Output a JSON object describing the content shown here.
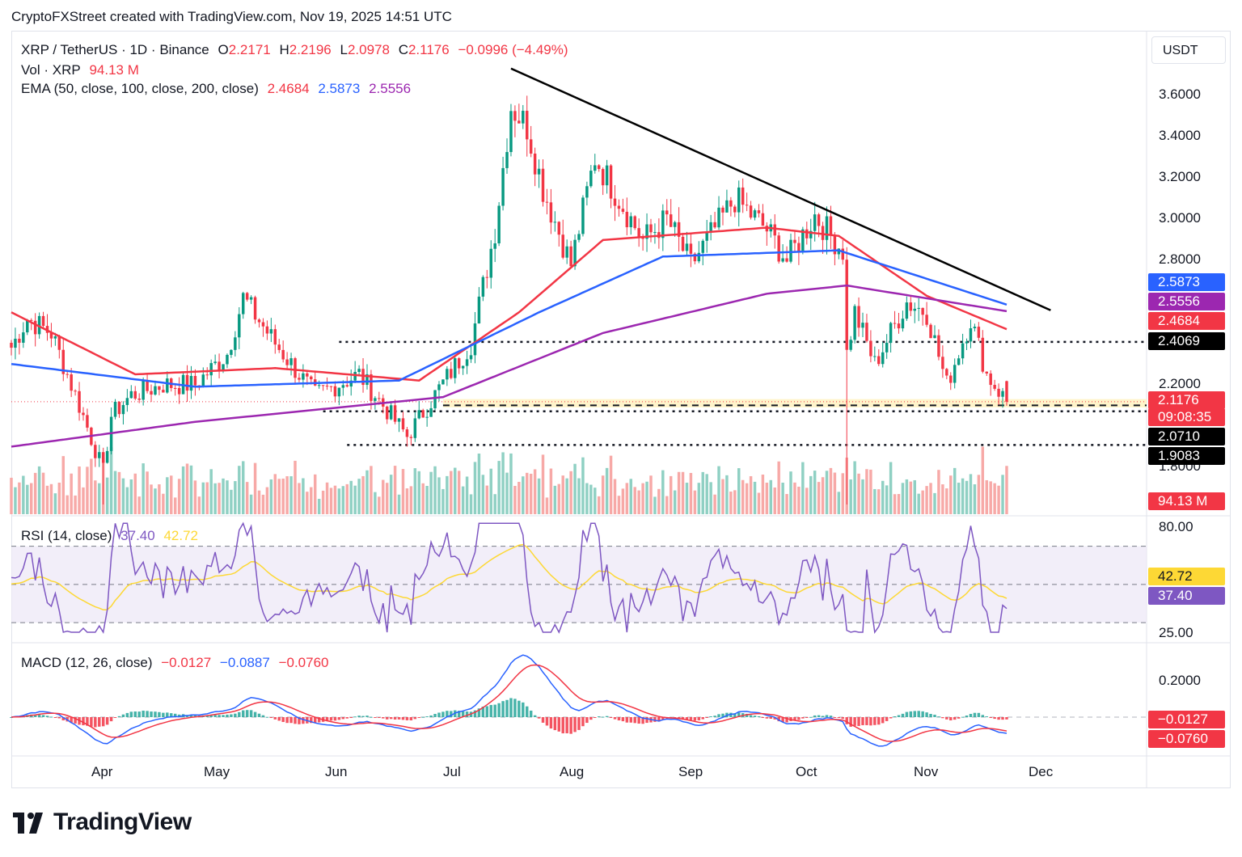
{
  "header": {
    "credit": "CryptoFXStreet created with TradingView.com, Nov 19, 2025 14:51 UTC"
  },
  "logo": {
    "text": "TradingView"
  },
  "currency_button": "USDT",
  "legend": {
    "symbol": "XRP / TetherUS · 1D · Binance",
    "o_label": "O",
    "o_value": "2.2171",
    "h_label": "H",
    "h_value": "2.2196",
    "l_label": "L",
    "l_value": "2.0978",
    "c_label": "C",
    "c_value": "2.1176",
    "change": "−0.0996 (−4.49%)",
    "vol_label": "Vol · XRP",
    "vol_value": "94.13 M",
    "ema_label": "EMA (50, close, 100, close, 200, close)",
    "ema50": "2.4684",
    "ema100": "2.5873",
    "ema200": "2.5556",
    "rsi_label": "RSI (14, close)",
    "rsi_value": "37.40",
    "rsi_ma": "42.72",
    "macd_label": "MACD (12, 26, close)",
    "macd_hist": "−0.0127",
    "macd_line": "−0.0887",
    "macd_signal": "−0.0760"
  },
  "price_axis": [
    "3.6000",
    "3.4000",
    "3.2000",
    "3.0000",
    "2.8000",
    "2.2000",
    "1.8000"
  ],
  "rsi_axis": [
    "80.00",
    "25.00"
  ],
  "macd_axis": [
    "0.2000"
  ],
  "price_tags": [
    {
      "text": "2.5873",
      "color": "#2962ff"
    },
    {
      "text": "2.5556",
      "color": "#9c27b0"
    },
    {
      "text": "2.4684",
      "color": "#f23645"
    },
    {
      "text": "2.4069",
      "color": "#000000"
    },
    {
      "text": "2.1176",
      "color": "#f23645"
    },
    {
      "text": "09:08:35",
      "color": "#f23645"
    },
    {
      "text": "2.0710",
      "color": "#000000"
    },
    {
      "text": "1.9083",
      "color": "#000000"
    },
    {
      "text": "94.13 M",
      "color": "#f23645"
    }
  ],
  "rsi_tags": [
    {
      "text": "42.72",
      "color": "#fdd835",
      "text_color": "#131722"
    },
    {
      "text": "37.40",
      "color": "#7e57c2",
      "text_color": "#ffffff"
    }
  ],
  "macd_tags": [
    {
      "text": "−0.0127",
      "color": "#f23645"
    },
    {
      "text": "−0.0760",
      "color": "#f23645"
    }
  ],
  "colors": {
    "up": "#089981",
    "down": "#f23645",
    "ema50": "#f23645",
    "ema100": "#2962ff",
    "ema200": "#9c27b0",
    "rsi": "#7e57c2",
    "rsi_ma": "#fdd835"
  },
  "chart_data": {
    "type": "candlestick",
    "title": "XRP / TetherUS · 1D · Binance",
    "x_months": [
      "Apr",
      "May",
      "Jun",
      "Jul",
      "Aug",
      "Sep",
      "Oct",
      "Nov",
      "Dec"
    ],
    "y_range": [
      1.62,
      3.78
    ],
    "key_levels": [
      2.4069,
      2.071,
      1.9083
    ],
    "price_keypoints": [
      {
        "date": "2025-03-15",
        "close": 2.38
      },
      {
        "date": "2025-03-19",
        "close": 2.52
      },
      {
        "date": "2025-03-25",
        "close": 2.45
      },
      {
        "date": "2025-04-01",
        "close": 2.1
      },
      {
        "date": "2025-04-07",
        "close": 1.78
      },
      {
        "date": "2025-04-09",
        "close": 2.05
      },
      {
        "date": "2025-04-14",
        "close": 2.15
      },
      {
        "date": "2025-04-22",
        "close": 2.2
      },
      {
        "date": "2025-04-30",
        "close": 2.2
      },
      {
        "date": "2025-05-08",
        "close": 2.35
      },
      {
        "date": "2025-05-12",
        "close": 2.62
      },
      {
        "date": "2025-05-20",
        "close": 2.4
      },
      {
        "date": "2025-05-30",
        "close": 2.15
      },
      {
        "date": "2025-06-10",
        "close": 2.25
      },
      {
        "date": "2025-06-22",
        "close": 1.95
      },
      {
        "date": "2025-06-30",
        "close": 2.18
      },
      {
        "date": "2025-07-08",
        "close": 2.4
      },
      {
        "date": "2025-07-14",
        "close": 2.95
      },
      {
        "date": "2025-07-18",
        "close": 3.55
      },
      {
        "date": "2025-07-22",
        "close": 3.45
      },
      {
        "date": "2025-07-26",
        "close": 3.15
      },
      {
        "date": "2025-08-02",
        "close": 2.78
      },
      {
        "date": "2025-08-08",
        "close": 3.3
      },
      {
        "date": "2025-08-14",
        "close": 3.1
      },
      {
        "date": "2025-08-20",
        "close": 2.9
      },
      {
        "date": "2025-08-26",
        "close": 3.0
      },
      {
        "date": "2025-09-01",
        "close": 2.78
      },
      {
        "date": "2025-09-12",
        "close": 3.1
      },
      {
        "date": "2025-09-20",
        "close": 2.95
      },
      {
        "date": "2025-09-25",
        "close": 2.8
      },
      {
        "date": "2025-10-02",
        "close": 3.02
      },
      {
        "date": "2025-10-09",
        "close": 2.85
      },
      {
        "date": "2025-10-10",
        "close": 2.35
      },
      {
        "date": "2025-10-12",
        "close": 2.55
      },
      {
        "date": "2025-10-17",
        "close": 2.3
      },
      {
        "date": "2025-10-25",
        "close": 2.6
      },
      {
        "date": "2025-10-30",
        "close": 2.55
      },
      {
        "date": "2025-11-04",
        "close": 2.2
      },
      {
        "date": "2025-11-10",
        "close": 2.52
      },
      {
        "date": "2025-11-14",
        "close": 2.25
      },
      {
        "date": "2025-11-19",
        "close": 2.1176
      }
    ],
    "ema50_keypoints": [
      {
        "date": "2025-03-15",
        "value": 2.55
      },
      {
        "date": "2025-04-15",
        "value": 2.25
      },
      {
        "date": "2025-05-20",
        "value": 2.28
      },
      {
        "date": "2025-06-25",
        "value": 2.22
      },
      {
        "date": "2025-07-20",
        "value": 2.55
      },
      {
        "date": "2025-08-10",
        "value": 2.9
      },
      {
        "date": "2025-09-20",
        "value": 2.96
      },
      {
        "date": "2025-10-08",
        "value": 2.92
      },
      {
        "date": "2025-10-30",
        "value": 2.63
      },
      {
        "date": "2025-11-19",
        "value": 2.4684
      }
    ],
    "ema100_keypoints": [
      {
        "date": "2025-03-15",
        "value": 2.3
      },
      {
        "date": "2025-04-30",
        "value": 2.19
      },
      {
        "date": "2025-06-20",
        "value": 2.22
      },
      {
        "date": "2025-07-25",
        "value": 2.55
      },
      {
        "date": "2025-08-25",
        "value": 2.82
      },
      {
        "date": "2025-10-08",
        "value": 2.85
      },
      {
        "date": "2025-11-19",
        "value": 2.5873
      }
    ],
    "ema200_keypoints": [
      {
        "date": "2025-03-15",
        "value": 1.9
      },
      {
        "date": "2025-04-30",
        "value": 2.02
      },
      {
        "date": "2025-07-01",
        "value": 2.14
      },
      {
        "date": "2025-08-10",
        "value": 2.45
      },
      {
        "date": "2025-09-20",
        "value": 2.64
      },
      {
        "date": "2025-10-10",
        "value": 2.68
      },
      {
        "date": "2025-11-19",
        "value": 2.5556
      }
    ],
    "trendline": [
      {
        "date": "2025-07-18",
        "value": 3.73
      },
      {
        "date": "2025-11-30",
        "value": 2.56
      }
    ],
    "volume": {
      "last": "94.13 M"
    },
    "rsi": {
      "last": 37.4,
      "ma": 42.72,
      "bands": [
        70,
        50,
        30
      ]
    },
    "macd": {
      "hist": -0.0127,
      "macd": -0.0887,
      "signal": -0.076
    }
  }
}
